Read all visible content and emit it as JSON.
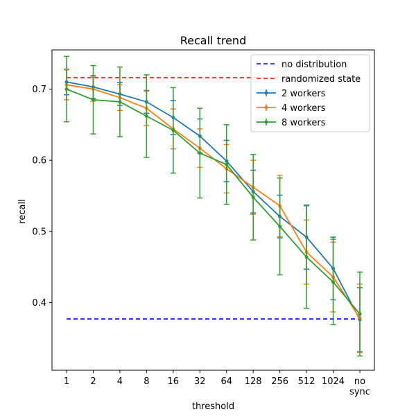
{
  "chart_data": {
    "type": "line",
    "title": "Recall trend",
    "xlabel": "threshold",
    "ylabel": "recall",
    "categories": [
      "1",
      "2",
      "4",
      "8",
      "16",
      "32",
      "64",
      "128",
      "256",
      "512",
      "1024",
      "no\nsync"
    ],
    "ylim": [
      0.305,
      0.755
    ],
    "yticks": [
      0.4,
      0.5,
      0.6,
      0.7
    ],
    "grid": false,
    "legend_position": "top-right",
    "reference_lines": [
      {
        "name": "no distribution",
        "y": 0.377,
        "color": "#0000ff",
        "style": "dashed"
      },
      {
        "name": "randomized state",
        "y": 0.716,
        "color": "#ff0000",
        "style": "dashed"
      }
    ],
    "series": [
      {
        "name": "2 workers",
        "color": "#1f77b4",
        "values": [
          0.71,
          0.703,
          0.693,
          0.682,
          0.66,
          0.634,
          0.599,
          0.556,
          0.521,
          0.492,
          0.448,
          0.376
        ],
        "errors": [
          0.018,
          0.016,
          0.016,
          0.016,
          0.024,
          0.024,
          0.029,
          0.03,
          0.03,
          0.045,
          0.044,
          0.045
        ]
      },
      {
        "name": "4 workers",
        "color": "#ff7f0e",
        "values": [
          0.706,
          0.7,
          0.688,
          0.673,
          0.644,
          0.617,
          0.588,
          0.562,
          0.536,
          0.471,
          0.436,
          0.378
        ],
        "errors": [
          0.021,
          0.017,
          0.018,
          0.024,
          0.028,
          0.027,
          0.034,
          0.038,
          0.043,
          0.045,
          0.049,
          0.048
        ]
      },
      {
        "name": "8 workers",
        "color": "#2ca02c",
        "values": [
          0.7,
          0.685,
          0.682,
          0.662,
          0.642,
          0.61,
          0.594,
          0.548,
          0.507,
          0.464,
          0.429,
          0.384
        ],
        "errors": [
          0.046,
          0.048,
          0.049,
          0.058,
          0.06,
          0.063,
          0.056,
          0.06,
          0.068,
          0.072,
          0.06,
          0.059
        ]
      }
    ]
  }
}
